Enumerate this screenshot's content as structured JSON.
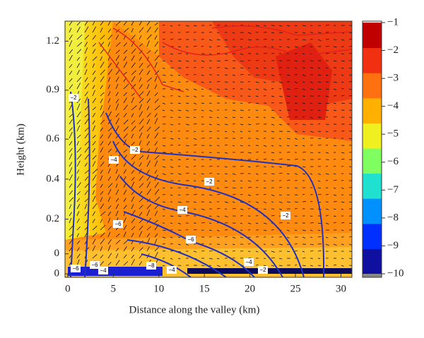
{
  "chart_data": {
    "type": "contour",
    "xlabel": "Distance along the valley (km)",
    "ylabel": "Height (km)",
    "xlim": [
      -0.3,
      31.2
    ],
    "xticks": [
      0,
      5,
      10,
      15,
      20,
      25,
      30
    ],
    "ylim": [
      0,
      1.25
    ],
    "yticks": [
      {
        "value": 0,
        "label": "0"
      },
      {
        "value": 0.05,
        "label": "0"
      },
      0.2,
      0.4,
      0.6,
      0.9,
      1.2
    ],
    "colorbar": {
      "lim": [
        -10,
        -1
      ],
      "ticks": [
        {
          "value": -1,
          "label": "−1"
        },
        {
          "value": -2,
          "label": "−2"
        },
        {
          "value": -3,
          "label": "−3"
        },
        {
          "value": -4,
          "label": "−4"
        },
        {
          "value": -5,
          "label": "−5"
        },
        {
          "value": -6,
          "label": "−6"
        },
        {
          "value": -7,
          "label": "−7"
        },
        {
          "value": -8,
          "label": "−8"
        },
        {
          "value": -9,
          "label": "−9"
        },
        {
          "value": -10,
          "label": "−10"
        }
      ],
      "colors": [
        "#1010a0",
        "#0030ff",
        "#0090ff",
        "#20e0d0",
        "#80ff60",
        "#f0f020",
        "#ffb000",
        "#ff7010",
        "#f03010",
        "#c00000"
      ]
    },
    "contour_labels": [
      {
        "value": -2,
        "label": "−2"
      },
      {
        "value": -2,
        "label": "−2"
      },
      {
        "value": -2,
        "label": "−2"
      },
      {
        "value": -2,
        "label": "−2"
      },
      {
        "value": -2,
        "label": "−2"
      },
      {
        "value": -4,
        "label": "−4"
      },
      {
        "value": -4,
        "label": "−4"
      },
      {
        "value": -4,
        "label": "−4"
      },
      {
        "value": -4,
        "label": "−4"
      },
      {
        "value": -4,
        "label": "−4"
      },
      {
        "value": -6,
        "label": "−6"
      },
      {
        "value": -6,
        "label": "−6"
      },
      {
        "value": -6,
        "label": "−6"
      },
      {
        "value": -6,
        "label": "−6"
      },
      {
        "value": -8,
        "label": "−8"
      }
    ]
  }
}
